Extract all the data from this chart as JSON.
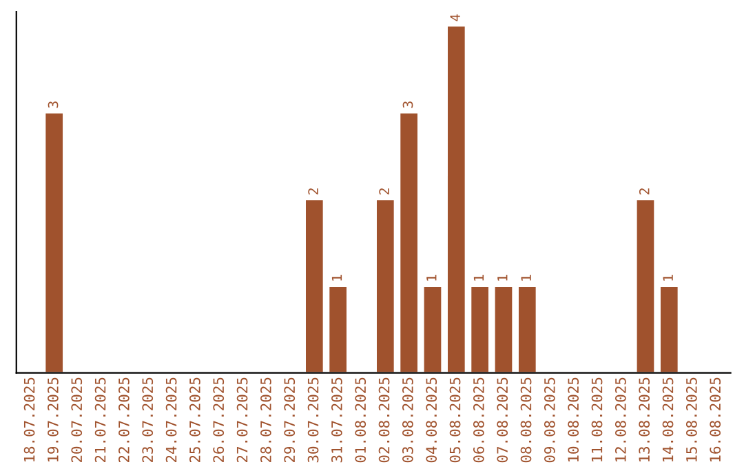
{
  "chart_data": {
    "type": "bar",
    "categories": [
      "18.07.2025",
      "19.07.2025",
      "20.07.2025",
      "21.07.2025",
      "22.07.2025",
      "23.07.2025",
      "24.07.2025",
      "25.07.2025",
      "26.07.2025",
      "27.07.2025",
      "28.07.2025",
      "29.07.2025",
      "30.07.2025",
      "31.07.2025",
      "01.08.2025",
      "02.08.2025",
      "03.08.2025",
      "04.08.2025",
      "05.08.2025",
      "06.08.2025",
      "07.08.2025",
      "08.08.2025",
      "09.08.2025",
      "10.08.2025",
      "11.08.2025",
      "12.08.2025",
      "13.08.2025",
      "14.08.2025",
      "15.08.2025",
      "16.08.2025"
    ],
    "values": [
      null,
      3,
      null,
      null,
      null,
      null,
      null,
      null,
      null,
      null,
      null,
      null,
      2,
      1,
      null,
      2,
      3,
      1,
      4,
      1,
      1,
      1,
      null,
      null,
      null,
      null,
      2,
      1,
      null,
      null
    ],
    "value_labels": [
      null,
      "3",
      null,
      null,
      null,
      null,
      null,
      null,
      null,
      null,
      null,
      null,
      "2",
      "1",
      null,
      "2",
      "3",
      "1",
      "4",
      "1",
      "1",
      "1",
      null,
      null,
      null,
      null,
      "2",
      "1",
      null,
      null
    ],
    "color": "#a0522d",
    "tick_labels": "x",
    "grid": false,
    "legend": false
  }
}
